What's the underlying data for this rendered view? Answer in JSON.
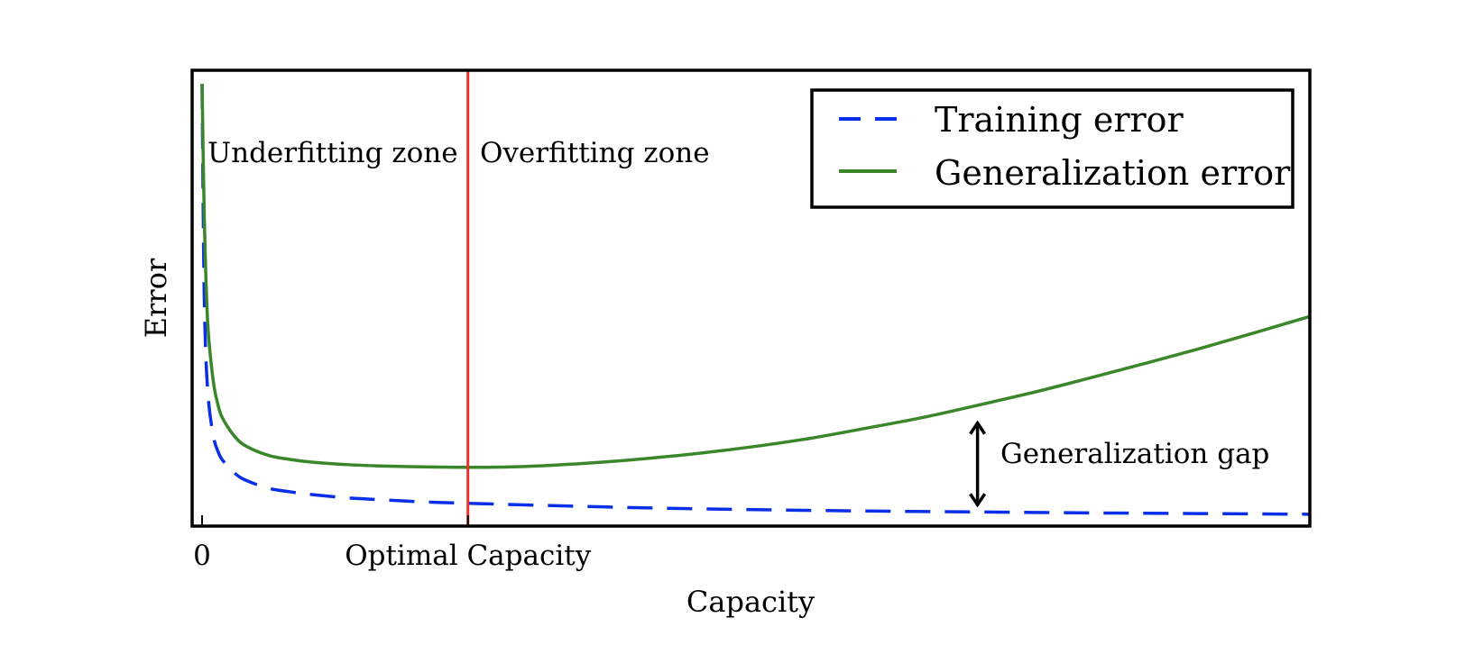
{
  "chart_data": {
    "type": "line",
    "title": "",
    "xlabel": "Capacity",
    "ylabel": "Error",
    "xlim": [
      0,
      100
    ],
    "ylim": [
      0,
      100
    ],
    "xticks": [
      {
        "x": 0,
        "label": "0"
      },
      {
        "x": 24,
        "label": "Optimal Capacity"
      }
    ],
    "grid": false,
    "legend_position": "top-right",
    "series": [
      {
        "name": "Training error",
        "style": "dashed",
        "color": "#0a2fe8",
        "x": [
          0,
          0.2,
          0.5,
          1,
          1.5,
          2,
          3,
          4,
          6,
          8,
          10,
          13,
          16,
          20,
          24,
          30,
          40,
          50,
          60,
          70,
          80,
          90,
          100
        ],
        "y": [
          97,
          50,
          30,
          20,
          16,
          14,
          11.5,
          10,
          8.3,
          7.5,
          6.9,
          6.2,
          5.8,
          5.3,
          5,
          4.6,
          4,
          3.6,
          3.3,
          3.1,
          2.9,
          2.75,
          2.6
        ]
      },
      {
        "name": "Generalization error",
        "style": "solid",
        "color": "#3a862a",
        "x": [
          0,
          0.2,
          0.5,
          1,
          1.5,
          2,
          3,
          4,
          6,
          8,
          10,
          13,
          16,
          20,
          24,
          28,
          32,
          36,
          40,
          45,
          50,
          55,
          60,
          65,
          70,
          75,
          80,
          85,
          90,
          95,
          100
        ],
        "y": [
          97,
          68,
          45,
          32,
          26,
          23,
          19.5,
          17.5,
          15.5,
          14.6,
          14,
          13.5,
          13.2,
          13,
          12.9,
          13,
          13.4,
          14,
          14.8,
          16,
          17.5,
          19.3,
          21.5,
          23.8,
          26.5,
          29.3,
          32.4,
          35.6,
          38.9,
          42.4,
          46
        ]
      }
    ],
    "vertical_line": {
      "x": 24,
      "color": "#e8312b"
    },
    "annotations": {
      "underfitting": "Underfitting zone",
      "overfitting": "Overfitting zone",
      "gap": "Generalization gap",
      "gap_x": 70,
      "gap_from_y": 3.5,
      "gap_to_y": 23.4
    },
    "legend": {
      "training": "Training error",
      "generalization": "Generalization error"
    }
  }
}
